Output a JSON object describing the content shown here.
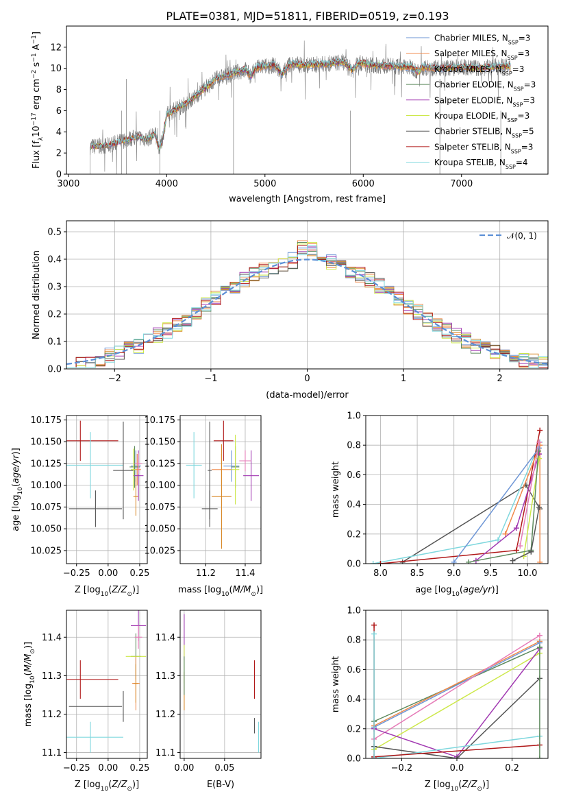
{
  "title": "PLATE=0381, MJD=51811, FIBERID=0519, z=0.193",
  "colors": {
    "chabrier_miles": "#6e96d6",
    "salpeter_miles": "#f08a4b",
    "kroupa_miles": "#d98a2a",
    "chabrier_elodie": "#5e8a5e",
    "salpeter_elodie": "#a23ab2",
    "kroupa_elodie": "#cde84a",
    "chabrier_stelib": "#555555",
    "salpeter_stelib": "#b01818",
    "kroupa_stelib": "#80d8de",
    "pink": "#e67cb8",
    "normal": "#5b8fd6",
    "grid": "#b0b0b0"
  },
  "chart_data": [
    {
      "type": "line",
      "xlabel": "wavelength [Angstrom, rest frame]",
      "ylabel": "Flux [f_λ 10^-17 erg cm^-2 s^-1 A^-1]",
      "xlim": [
        2980,
        7880
      ],
      "ylim": [
        0,
        14
      ],
      "xticks": [
        3000,
        4000,
        5000,
        6000,
        7000
      ],
      "yticks": [
        0,
        2,
        4,
        6,
        8,
        10,
        12
      ],
      "grid": false,
      "legend": "upper-right",
      "spectrum": [
        [
          3220,
          0
        ],
        [
          3221,
          2.6
        ],
        [
          3400,
          2.7
        ],
        [
          3600,
          3.3
        ],
        [
          3700,
          3.5
        ],
        [
          3800,
          3.3
        ],
        [
          3880,
          3.8
        ],
        [
          3930,
          2.4
        ],
        [
          3960,
          3.5
        ],
        [
          4000,
          5.6
        ],
        [
          4100,
          6.2
        ],
        [
          4200,
          6.7
        ],
        [
          4300,
          7.4
        ],
        [
          4400,
          8.2
        ],
        [
          4500,
          9.0
        ],
        [
          4600,
          9.3
        ],
        [
          4700,
          9.6
        ],
        [
          4800,
          9.9
        ],
        [
          4860,
          9.2
        ],
        [
          4900,
          10.0
        ],
        [
          5000,
          10.2
        ],
        [
          5100,
          10.3
        ],
        [
          5175,
          9.4
        ],
        [
          5250,
          10.4
        ],
        [
          5400,
          10.3
        ],
        [
          5600,
          10.4
        ],
        [
          5800,
          10.6
        ],
        [
          5890,
          9.8
        ],
        [
          5950,
          10.5
        ],
        [
          6100,
          10.3
        ],
        [
          6300,
          10.2
        ],
        [
          6500,
          10.1
        ],
        [
          6560,
          9.6
        ],
        [
          6600,
          10.1
        ],
        [
          6800,
          10.0
        ],
        [
          7000,
          10.1
        ],
        [
          7200,
          10.0
        ],
        [
          7400,
          10.2
        ],
        [
          7500,
          10.1
        ]
      ],
      "series": [
        {
          "name": "Chabrier MILES, N_SSP=3",
          "color_key": "chabrier_miles"
        },
        {
          "name": "Salpeter MILES, N_SSP=3",
          "color_key": "salpeter_miles"
        },
        {
          "name": "Kroupa MILES, N_SSP=3",
          "color_key": "kroupa_miles"
        },
        {
          "name": "Chabrier ELODIE, N_SSP=3",
          "color_key": "chabrier_elodie"
        },
        {
          "name": "Salpeter ELODIE, N_SSP=3",
          "color_key": "salpeter_elodie"
        },
        {
          "name": "Kroupa ELODIE, N_SSP=3",
          "color_key": "kroupa_elodie"
        },
        {
          "name": "Chabrier STELIB, N_SSP=5",
          "color_key": "chabrier_stelib"
        },
        {
          "name": "Salpeter STELIB, N_SSP=3",
          "color_key": "salpeter_stelib"
        },
        {
          "name": "Kroupa STELIB, N_SSP=4",
          "color_key": "kroupa_stelib"
        }
      ]
    },
    {
      "type": "bar",
      "xlabel": "(data-model)/error",
      "ylabel": "Normed distribution",
      "xlim": [
        -2.5,
        2.5
      ],
      "ylim": [
        0,
        0.54
      ],
      "xticks": [
        -2,
        -1,
        0,
        1,
        2
      ],
      "yticks": [
        0.0,
        0.1,
        0.2,
        0.3,
        0.4,
        0.5
      ],
      "grid": true,
      "legend": "upper-right",
      "legend_label": "𝒩(0, 1)"
    },
    {
      "type": "scatter",
      "xlabel": "Z [log10(Z/Z⊙)]",
      "ylabel": "age  [log10(age/yr)]",
      "xlim": [
        -0.33,
        0.31
      ],
      "ylim": [
        10.01,
        10.18
      ],
      "xticks": [
        -0.25,
        0.0,
        0.25
      ],
      "yticks": [
        10.025,
        10.05,
        10.075,
        10.1,
        10.125,
        10.15,
        10.175
      ],
      "grid": true,
      "points": [
        {
          "x": -0.22,
          "xerr": 0.3,
          "y": 10.151,
          "yerr": 0.023,
          "color_key": "salpeter_stelib"
        },
        {
          "x": -0.1,
          "xerr": 0.21,
          "y": 10.073,
          "yerr": 0.021,
          "color_key": "chabrier_stelib"
        },
        {
          "x": -0.14,
          "xerr": 0.26,
          "y": 10.123,
          "yerr": 0.038,
          "color_key": "kroupa_stelib"
        },
        {
          "x": 0.22,
          "xerr": 0.04,
          "y": 10.122,
          "yerr": 0.018,
          "color_key": "chabrier_miles"
        },
        {
          "x": 0.23,
          "xerr": 0.03,
          "y": 10.118,
          "yerr": 0.018,
          "color_key": "salpeter_miles"
        },
        {
          "x": 0.22,
          "xerr": 0.02,
          "y": 10.087,
          "yerr": 0.022,
          "color_key": "kroupa_miles"
        },
        {
          "x": 0.21,
          "xerr": 0.04,
          "y": 10.121,
          "yerr": 0.024,
          "color_key": "chabrier_elodie"
        },
        {
          "x": 0.24,
          "xerr": 0.04,
          "y": 10.111,
          "yerr": 0.029,
          "color_key": "salpeter_elodie"
        },
        {
          "x": 0.2,
          "xerr": 0.02,
          "y": 10.118,
          "yerr": 0.024,
          "color_key": "kroupa_elodie"
        },
        {
          "x": 0.24,
          "xerr": 0.03,
          "y": 10.125,
          "yerr": 0.012,
          "color_key": "pink"
        },
        {
          "x": 0.12,
          "xerr": 0.08,
          "y": 10.117,
          "yerr": 0.056,
          "color_key": "chabrier_stelib"
        }
      ]
    },
    {
      "type": "scatter",
      "xlabel": "mass [log10(M/M⊙)]",
      "ylabel": "",
      "xlim": [
        11.07,
        11.48
      ],
      "ylim": [
        10.01,
        10.18
      ],
      "xticks": [
        11.2,
        11.4
      ],
      "yticks": [
        10.025,
        10.05,
        10.075,
        10.1,
        10.125,
        10.15,
        10.175
      ],
      "grid": true,
      "points": [
        {
          "x": 11.29,
          "xerr": 0.05,
          "y": 10.151,
          "yerr": 0.023,
          "color_key": "salpeter_stelib"
        },
        {
          "x": 11.22,
          "xerr": 0.04,
          "y": 10.073,
          "yerr": 0.021,
          "color_key": "chabrier_stelib"
        },
        {
          "x": 11.14,
          "xerr": 0.04,
          "y": 10.123,
          "yerr": 0.038,
          "color_key": "kroupa_stelib"
        },
        {
          "x": 11.33,
          "xerr": 0.04,
          "y": 10.122,
          "yerr": 0.018,
          "color_key": "chabrier_miles"
        },
        {
          "x": 11.28,
          "xerr": 0.05,
          "y": 10.118,
          "yerr": 0.018,
          "color_key": "salpeter_miles"
        },
        {
          "x": 11.28,
          "xerr": 0.05,
          "y": 10.087,
          "yerr": 0.06,
          "color_key": "kroupa_miles"
        },
        {
          "x": 11.35,
          "xerr": 0.02,
          "y": 10.121,
          "yerr": 0.024,
          "color_key": "chabrier_elodie"
        },
        {
          "x": 11.43,
          "xerr": 0.04,
          "y": 10.111,
          "yerr": 0.029,
          "color_key": "salpeter_elodie"
        },
        {
          "x": 11.35,
          "xerr": 0.02,
          "y": 10.118,
          "yerr": 0.04,
          "color_key": "kroupa_elodie"
        },
        {
          "x": 11.4,
          "xerr": 0.03,
          "y": 10.128,
          "yerr": 0.012,
          "color_key": "pink"
        },
        {
          "x": 11.22,
          "xerr": 0.01,
          "y": 10.117,
          "yerr": 0.056,
          "color_key": "chabrier_stelib"
        }
      ]
    },
    {
      "type": "line",
      "xlabel": "age  [log10(age/yr)]",
      "ylabel": "mass weight",
      "xlim": [
        7.8,
        10.28
      ],
      "ylim": [
        0,
        1
      ],
      "xticks": [
        8.0,
        8.5,
        9.0,
        9.5,
        10.0
      ],
      "yticks": [
        0.0,
        0.2,
        0.4,
        0.6,
        0.8,
        1.0
      ],
      "grid": true,
      "series": [
        {
          "color_key": "chabrier_stelib",
          "x": [
            8.3,
            9.98,
            10.17
          ],
          "y": [
            0.01,
            0.53,
            0.37
          ]
        },
        {
          "color_key": "kroupa_stelib",
          "x": [
            7.9,
            9.6,
            10.17
          ],
          "y": [
            0.0,
            0.16,
            0.82
          ]
        },
        {
          "color_key": "salpeter_stelib",
          "x": [
            8.0,
            9.85,
            10.17
          ],
          "y": [
            0.0,
            0.09,
            0.9
          ]
        },
        {
          "color_key": "salpeter_miles",
          "x": [
            9.7,
            10.17,
            10.17
          ],
          "y": [
            0.2,
            0.8,
            0.01
          ]
        },
        {
          "color_key": "chabrier_miles",
          "x": [
            9.0,
            10.16
          ],
          "y": [
            0.01,
            0.78
          ]
        },
        {
          "color_key": "salpeter_elodie",
          "x": [
            9.3,
            9.85,
            10.16
          ],
          "y": [
            0.02,
            0.24,
            0.74
          ]
        },
        {
          "color_key": "kroupa_elodie",
          "x": [
            9.95,
            10.16
          ],
          "y": [
            0.05,
            0.71
          ]
        },
        {
          "color_key": "chabrier_elodie",
          "x": [
            9.2,
            10.05,
            10.15
          ],
          "y": [
            0.01,
            0.09,
            0.76
          ]
        },
        {
          "color_key": "pink",
          "x": [
            9.9,
            10.16
          ],
          "y": [
            0.12,
            0.82
          ]
        },
        {
          "color_key": "chabrier_stelib",
          "x": [
            9.8,
            10.05,
            10.16
          ],
          "y": [
            0.02,
            0.08,
            0.38
          ]
        }
      ]
    },
    {
      "type": "scatter",
      "xlabel": "Z [log10(Z/Z⊙)]",
      "ylabel": "mass [log10(M/M⊙)]",
      "xlim": [
        -0.33,
        0.31
      ],
      "ylim": [
        11.085,
        11.47
      ],
      "xticks": [
        -0.25,
        0.0,
        0.25
      ],
      "yticks": [
        11.1,
        11.2,
        11.3,
        11.4
      ],
      "grid": true,
      "points": [
        {
          "x": -0.22,
          "xerr": 0.3,
          "y": 11.29,
          "yerr": 0.05,
          "color_key": "salpeter_stelib"
        },
        {
          "x": -0.1,
          "xerr": 0.21,
          "y": 11.22,
          "yerr": 0.0,
          "color_key": "chabrier_stelib"
        },
        {
          "x": -0.14,
          "xerr": 0.26,
          "y": 11.14,
          "yerr": 0.04,
          "color_key": "kroupa_stelib"
        },
        {
          "x": 0.12,
          "xerr": 0.0,
          "y": 11.22,
          "yerr": 0.04,
          "color_key": "chabrier_stelib"
        },
        {
          "x": 0.22,
          "xerr": 0.04,
          "y": 11.35,
          "yerr": 0.06,
          "color_key": "chabrier_elodie"
        },
        {
          "x": 0.22,
          "xerr": 0.08,
          "y": 11.35,
          "yerr": 0.0,
          "color_key": "kroupa_elodie"
        },
        {
          "x": 0.24,
          "xerr": 0.06,
          "y": 11.43,
          "yerr": 0.04,
          "color_key": "salpeter_elodie"
        },
        {
          "x": 0.24,
          "xerr": 0.03,
          "y": 11.4,
          "yerr": 0.03,
          "color_key": "pink"
        },
        {
          "x": 0.22,
          "xerr": 0.03,
          "y": 11.28,
          "yerr": 0.07,
          "color_key": "salpeter_miles"
        },
        {
          "x": 0.22,
          "xerr": 0.02,
          "y": 11.28,
          "yerr": 0.05,
          "color_key": "kroupa_miles"
        }
      ]
    },
    {
      "type": "scatter",
      "xlabel": "E(B-V)",
      "ylabel": "",
      "xlim": [
        -0.005,
        0.095
      ],
      "ylim": [
        11.085,
        11.47
      ],
      "xticks": [
        0.0,
        0.05
      ],
      "yticks": [
        11.1,
        11.2,
        11.3,
        11.4
      ],
      "grid": true,
      "points": [
        {
          "x": 0.0,
          "y": 11.4,
          "yerr": 0.06,
          "color_key": "salpeter_elodie"
        },
        {
          "x": 0.0,
          "y": 11.33,
          "yerr": 0.05,
          "color_key": "kroupa_elodie"
        },
        {
          "x": 0.0,
          "y": 11.26,
          "yerr": 0.05,
          "color_key": "kroupa_miles"
        },
        {
          "x": 0.0,
          "y": 11.3,
          "yerr": 0.05,
          "color_key": "chabrier_elodie"
        },
        {
          "x": 0.087,
          "y": 11.29,
          "yerr": 0.05,
          "color_key": "salpeter_stelib"
        },
        {
          "x": 0.087,
          "y": 11.17,
          "yerr": 0.02,
          "color_key": "chabrier_stelib"
        },
        {
          "x": 0.092,
          "y": 11.14,
          "yerr": 0.04,
          "color_key": "kroupa_stelib"
        }
      ]
    },
    {
      "type": "line",
      "xlabel": "Z [log10(Z/Z⊙)]",
      "ylabel": "mass weight",
      "xlim": [
        -0.33,
        0.33
      ],
      "ylim": [
        0,
        1
      ],
      "xticks": [
        -0.2,
        0.0,
        0.2
      ],
      "yticks": [
        0.0,
        0.2,
        0.4,
        0.6,
        0.8,
        1.0
      ],
      "grid": true,
      "series": [
        {
          "color_key": "chabrier_elodie",
          "x": [
            -0.3,
            0.3
          ],
          "y": [
            0.25,
            0.75
          ]
        },
        {
          "color_key": "salpeter_miles",
          "x": [
            -0.3,
            0.3
          ],
          "y": [
            0.22,
            0.79
          ]
        },
        {
          "color_key": "chabrier_miles",
          "x": [
            -0.3,
            0.3
          ],
          "y": [
            0.21,
            0.78
          ]
        },
        {
          "color_key": "pink",
          "x": [
            -0.3,
            0.3
          ],
          "y": [
            0.13,
            0.83
          ]
        },
        {
          "color_key": "kroupa_elodie",
          "x": [
            -0.3,
            0.3
          ],
          "y": [
            0.06,
            0.71
          ]
        },
        {
          "color_key": "salpeter_elodie",
          "x": [
            -0.3,
            0.0,
            0.3
          ],
          "y": [
            0.2,
            0.01,
            0.74
          ]
        },
        {
          "color_key": "chabrier_stelib",
          "x": [
            -0.3,
            0.0,
            0.3
          ],
          "y": [
            0.08,
            0.0,
            0.54
          ]
        },
        {
          "color_key": "kroupa_stelib",
          "x": [
            -0.3,
            0.3
          ],
          "y": [
            0.0,
            0.15
          ]
        },
        {
          "color_key": "salpeter_stelib",
          "x": [
            -0.3,
            0.3
          ],
          "y": [
            0.01,
            0.09
          ]
        },
        {
          "color_key": "salpeter_stelib",
          "x": [
            -0.3,
            -0.3
          ],
          "y": [
            0.0,
            0.9
          ]
        },
        {
          "color_key": "kroupa_stelib",
          "x": [
            -0.3,
            -0.3
          ],
          "y": [
            0.0,
            0.84
          ]
        },
        {
          "color_key": "chabrier_elodie",
          "x": [
            0.3,
            0.3
          ],
          "y": [
            0.0,
            0.75
          ]
        }
      ]
    }
  ]
}
